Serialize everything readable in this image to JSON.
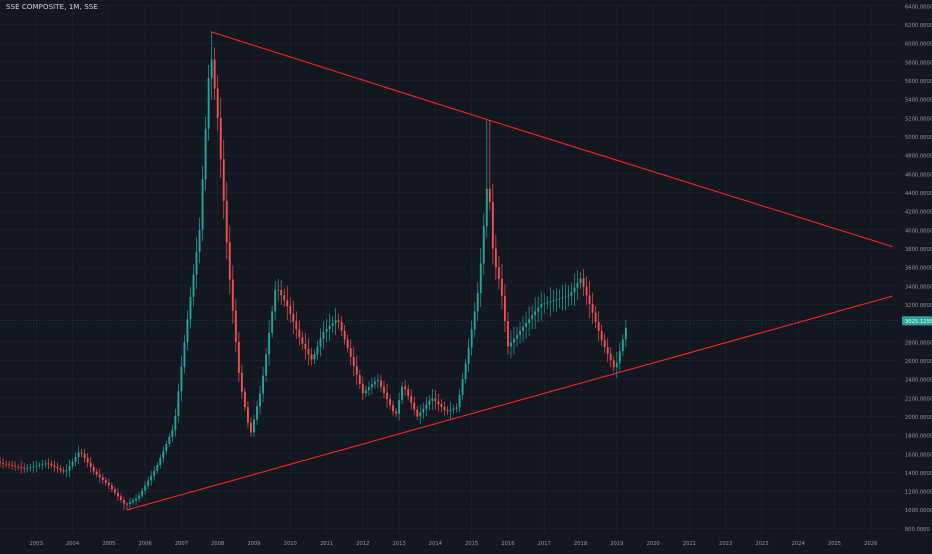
{
  "chart_data": {
    "type": "candlestick",
    "title": "SSE COMPOSITE, 1M, SSE",
    "symbol": "SSE COMPOSITE",
    "interval": "1M",
    "exchange": "SSE",
    "current_price_label": "3025.1255",
    "x_tick_labels": [
      "2003",
      "2004",
      "2005",
      "2006",
      "2007",
      "2008",
      "2009",
      "2010",
      "2011",
      "2012",
      "2013",
      "2014",
      "2015",
      "2016",
      "2017",
      "2018",
      "2019",
      "2020",
      "2021",
      "2022",
      "2023",
      "2024",
      "2025",
      "2026"
    ],
    "y_tick_labels": [
      "800.0000",
      "1000.0000",
      "1200.0000",
      "1400.0000",
      "1600.0000",
      "1800.0000",
      "2000.0000",
      "2200.0000",
      "2400.0000",
      "2600.0000",
      "2800.0000",
      "3000.0000",
      "3200.0000",
      "3400.0000",
      "3600.0000",
      "3800.0000",
      "4000.0000",
      "4200.0000",
      "4400.0000",
      "4600.0000",
      "4800.0000",
      "5000.0000",
      "5200.0000",
      "5400.0000",
      "5600.0000",
      "5800.0000",
      "6000.0000",
      "6200.0000",
      "6400.0000"
    ],
    "ylim": [
      740,
      6420
    ],
    "xlim": [
      2002.0,
      2026.75
    ],
    "up_color": "#26a69a",
    "down_color": "#ef5350",
    "trendline_color": "#ff2020",
    "background": "#131722",
    "grid_color": "#1f2433",
    "trendlines": [
      {
        "name": "upper",
        "points": [
          [
            2007.8,
            6124
          ],
          [
            2015.45,
            5178
          ],
          [
            2026.6,
            3820
          ]
        ]
      },
      {
        "name": "lower",
        "points": [
          [
            2005.5,
            998
          ],
          [
            2026.6,
            3290
          ]
        ]
      }
    ],
    "anchors": [
      [
        2002.0,
        1500
      ],
      [
        2002.7,
        1440
      ],
      [
        2003.3,
        1500
      ],
      [
        2003.8,
        1400
      ],
      [
        2004.2,
        1630
      ],
      [
        2004.6,
        1400
      ],
      [
        2005.0,
        1260
      ],
      [
        2005.45,
        1050
      ],
      [
        2005.8,
        1130
      ],
      [
        2006.3,
        1450
      ],
      [
        2006.8,
        1900
      ],
      [
        2007.1,
        2850
      ],
      [
        2007.5,
        4000
      ],
      [
        2007.8,
        5950
      ],
      [
        2008.0,
        5200
      ],
      [
        2008.3,
        3600
      ],
      [
        2008.6,
        2400
      ],
      [
        2008.9,
        1800
      ],
      [
        2009.2,
        2300
      ],
      [
        2009.6,
        3400
      ],
      [
        2009.9,
        3200
      ],
      [
        2010.3,
        2800
      ],
      [
        2010.6,
        2600
      ],
      [
        2010.9,
        2900
      ],
      [
        2011.3,
        3050
      ],
      [
        2011.7,
        2600
      ],
      [
        2012.0,
        2250
      ],
      [
        2012.4,
        2400
      ],
      [
        2012.9,
        2000
      ],
      [
        2013.1,
        2350
      ],
      [
        2013.5,
        2000
      ],
      [
        2013.9,
        2200
      ],
      [
        2014.3,
        2050
      ],
      [
        2014.6,
        2100
      ],
      [
        2014.9,
        2700
      ],
      [
        2015.2,
        3400
      ],
      [
        2015.45,
        4600
      ],
      [
        2015.6,
        3700
      ],
      [
        2015.8,
        3400
      ],
      [
        2016.0,
        2750
      ],
      [
        2016.5,
        3000
      ],
      [
        2016.9,
        3200
      ],
      [
        2017.3,
        3250
      ],
      [
        2017.7,
        3300
      ],
      [
        2018.0,
        3480
      ],
      [
        2018.3,
        3150
      ],
      [
        2018.6,
        2800
      ],
      [
        2018.95,
        2500
      ],
      [
        2019.15,
        2800
      ],
      [
        2019.3,
        3025
      ]
    ]
  }
}
